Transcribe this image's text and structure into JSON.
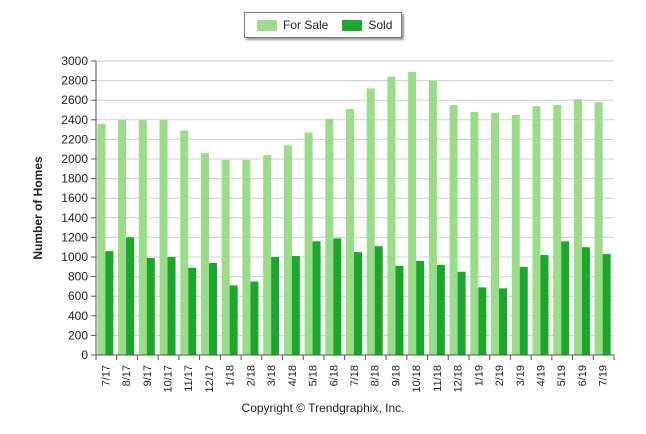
{
  "chart_data": {
    "type": "bar",
    "categories": [
      "7/17",
      "8/17",
      "9/17",
      "10/17",
      "11/17",
      "12/17",
      "1/18",
      "2/18",
      "3/18",
      "4/18",
      "5/18",
      "6/18",
      "7/18",
      "8/18",
      "9/18",
      "10/18",
      "11/18",
      "12/18",
      "1/19",
      "2/19",
      "3/19",
      "4/19",
      "5/19",
      "6/19",
      "7/19"
    ],
    "series": [
      {
        "name": "For Sale",
        "color": "#99dd88",
        "values": [
          2360,
          2400,
          2400,
          2400,
          2290,
          2060,
          1990,
          1990,
          2040,
          2140,
          2270,
          2410,
          2510,
          2720,
          2840,
          2890,
          2800,
          2550,
          2480,
          2470,
          2450,
          2540,
          2550,
          2610,
          2580
        ]
      },
      {
        "name": "Sold",
        "color": "#1aa82a",
        "values": [
          1060,
          1200,
          990,
          1000,
          890,
          940,
          710,
          750,
          1000,
          1010,
          1160,
          1190,
          1050,
          1110,
          910,
          960,
          920,
          850,
          690,
          680,
          900,
          1020,
          1160,
          1100,
          1030
        ]
      }
    ],
    "ylabel": "Number of Homes",
    "xlabel": "",
    "ylim": [
      0,
      3000
    ],
    "yticks": [
      0,
      200,
      400,
      600,
      800,
      1000,
      1200,
      1400,
      1600,
      1800,
      2000,
      2200,
      2400,
      2600,
      2800,
      3000
    ],
    "grid": true,
    "legend_position": "top-center"
  },
  "footer": {
    "copyright": "Copyright © Trendgraphix, Inc."
  }
}
